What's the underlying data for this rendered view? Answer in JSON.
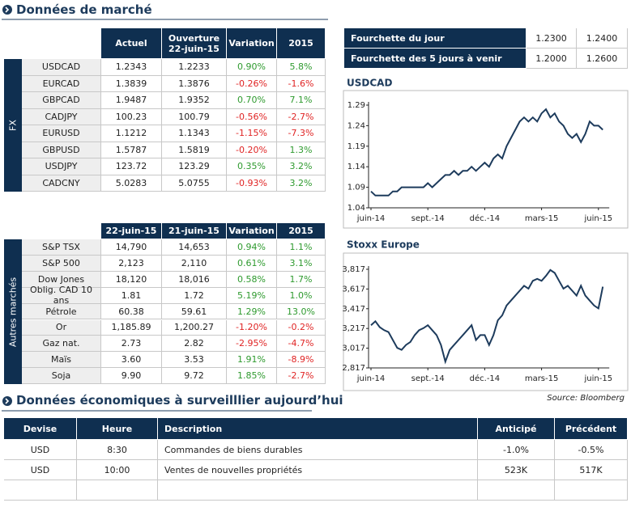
{
  "header": {
    "title": "Données de marché"
  },
  "fx_table": {
    "side_label": "FX",
    "columns": [
      "Actuel",
      "Ouverture\n22-juin-15",
      "Variation",
      "2015"
    ],
    "rows": [
      [
        "USDCAD",
        "1.2343",
        "1.2233",
        "0.90%",
        "5.8%"
      ],
      [
        "EURCAD",
        "1.3839",
        "1.3876",
        "-0.26%",
        "-1.6%"
      ],
      [
        "GBPCAD",
        "1.9487",
        "1.9352",
        "0.70%",
        "7.1%"
      ],
      [
        "CADJPY",
        "100.23",
        "100.79",
        "-0.56%",
        "-2.7%"
      ],
      [
        "EURUSD",
        "1.1212",
        "1.1343",
        "-1.15%",
        "-7.3%"
      ],
      [
        "GBPUSD",
        "1.5787",
        "1.5819",
        "-0.20%",
        "1.3%"
      ],
      [
        "USDJPY",
        "123.72",
        "123.29",
        "0.35%",
        "3.2%"
      ],
      [
        "CADCNY",
        "5.0283",
        "5.0755",
        "-0.93%",
        "3.2%"
      ]
    ]
  },
  "range_table": {
    "rows": [
      [
        "Fourchette du jour",
        "1.2300",
        "1.2400"
      ],
      [
        "Fourchette des 5 jours à venir",
        "1.2000",
        "1.2600"
      ]
    ]
  },
  "other_table": {
    "side_label": "Autres marchés",
    "columns": [
      "22-juin-15",
      "21-juin-15",
      "Variation",
      "2015"
    ],
    "rows": [
      [
        "S&P TSX",
        "14,790",
        "14,653",
        "0.94%",
        "1.1%"
      ],
      [
        "S&P 500",
        "2,123",
        "2,110",
        "0.61%",
        "3.1%"
      ],
      [
        "Dow Jones",
        "18,120",
        "18,016",
        "0.58%",
        "1.7%"
      ],
      [
        "Oblig. CAD 10 ans",
        "1.81",
        "1.72",
        "5.19%",
        "1.0%"
      ],
      [
        "Pétrole",
        "60.38",
        "59.61",
        "1.29%",
        "13.0%"
      ],
      [
        "Or",
        "1,185.89",
        "1,200.27",
        "-1.20%",
        "-0.2%"
      ],
      [
        "Gaz nat.",
        "2.73",
        "2.82",
        "-2.95%",
        "-4.7%"
      ],
      [
        "Maïs",
        "3.60",
        "3.53",
        "1.91%",
        "-8.9%"
      ],
      [
        "Soja",
        "9.90",
        "9.72",
        "1.85%",
        "-2.7%"
      ]
    ]
  },
  "source": "Source: Bloomberg",
  "economic": {
    "title": "Données économiques à surveilllier aujourd’hui",
    "columns": [
      "Devise",
      "Heure",
      "Description",
      "Anticipé",
      "Précédent"
    ],
    "rows": [
      [
        "USD",
        "8:30",
        "Commandes de biens durables",
        "-1.0%",
        "-0.5%"
      ],
      [
        "USD",
        "10:00",
        "Ventes de nouvelles propriétés",
        "523K",
        "517K"
      ]
    ]
  },
  "chart_data": [
    {
      "type": "line",
      "title": "USDCAD",
      "color": "#1d3b5c",
      "categories": [
        "juin-14",
        null,
        null,
        null,
        null,
        null,
        null,
        null,
        null,
        null,
        null,
        null,
        null,
        "sept.-14",
        null,
        null,
        null,
        null,
        null,
        null,
        null,
        null,
        null,
        null,
        null,
        null,
        "déc.-14",
        null,
        null,
        null,
        null,
        null,
        null,
        null,
        null,
        null,
        null,
        null,
        null,
        "mars-15",
        null,
        null,
        null,
        null,
        null,
        null,
        null,
        null,
        null,
        null,
        null,
        null,
        "juin-15",
        null
      ],
      "values": [
        1.08,
        1.07,
        1.07,
        1.07,
        1.07,
        1.08,
        1.08,
        1.09,
        1.09,
        1.09,
        1.09,
        1.09,
        1.09,
        1.1,
        1.09,
        1.1,
        1.11,
        1.12,
        1.12,
        1.13,
        1.12,
        1.13,
        1.13,
        1.14,
        1.13,
        1.14,
        1.15,
        1.14,
        1.16,
        1.17,
        1.16,
        1.19,
        1.21,
        1.23,
        1.25,
        1.26,
        1.25,
        1.26,
        1.25,
        1.27,
        1.28,
        1.26,
        1.27,
        1.25,
        1.24,
        1.22,
        1.21,
        1.22,
        1.2,
        1.22,
        1.25,
        1.24,
        1.24,
        1.23
      ],
      "ylim": [
        1.04,
        1.29
      ],
      "yticks": [
        1.04,
        1.09,
        1.14,
        1.19,
        1.24,
        1.29
      ]
    },
    {
      "type": "line",
      "title": "Stoxx Europe",
      "color": "#1d3b5c",
      "categories": [
        "juin-14",
        null,
        null,
        null,
        null,
        null,
        null,
        null,
        null,
        null,
        null,
        null,
        null,
        "sept.-14",
        null,
        null,
        null,
        null,
        null,
        null,
        null,
        null,
        null,
        null,
        null,
        null,
        "déc.-14",
        null,
        null,
        null,
        null,
        null,
        null,
        null,
        null,
        null,
        null,
        null,
        null,
        "mars-15",
        null,
        null,
        null,
        null,
        null,
        null,
        null,
        null,
        null,
        null,
        null,
        null,
        "juin-15",
        null
      ],
      "values": [
        3250,
        3290,
        3230,
        3200,
        3180,
        3100,
        3020,
        3000,
        3050,
        3080,
        3150,
        3200,
        3220,
        3250,
        3200,
        3150,
        3050,
        2880,
        3000,
        3050,
        3100,
        3150,
        3200,
        3250,
        3100,
        3150,
        3150,
        3050,
        3150,
        3300,
        3350,
        3450,
        3500,
        3550,
        3600,
        3650,
        3620,
        3700,
        3720,
        3700,
        3750,
        3810,
        3780,
        3700,
        3620,
        3650,
        3600,
        3550,
        3650,
        3550,
        3500,
        3450,
        3420,
        3640
      ],
      "ylim": [
        2817,
        3817
      ],
      "yticks": [
        {
          "value": 2817,
          "label": "2,817"
        },
        {
          "value": 3017,
          "label": "3,017"
        },
        {
          "value": 3217,
          "label": "3,217"
        },
        {
          "value": 3417,
          "label": "3,417"
        },
        {
          "value": 3617,
          "label": "3,617"
        },
        {
          "value": 3817,
          "label": "3,817"
        }
      ]
    }
  ]
}
